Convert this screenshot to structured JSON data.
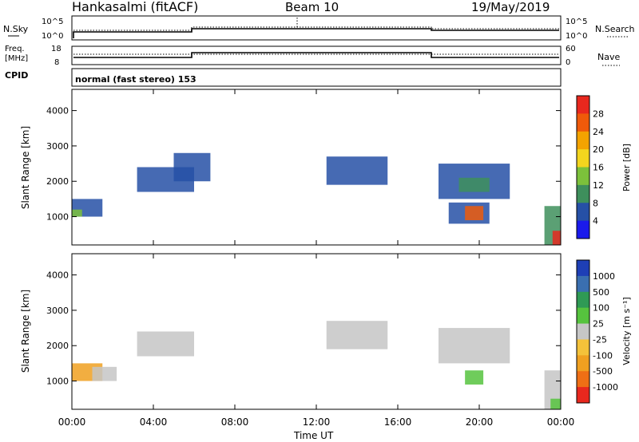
{
  "header": {
    "station": "Hankasalmi (fitACF)",
    "beam": "Beam 10",
    "date": "19/May/2019"
  },
  "sky_panel": {
    "left_label": "N.Sky",
    "right_label": "N.Search",
    "left_ticks": [
      "10^5",
      "10^0"
    ],
    "right_ticks": [
      "10^5",
      "10^0"
    ]
  },
  "freq_panel": {
    "left_label_line1": "Freq.",
    "left_label_line2": "[MHz]",
    "right_label": "Nave",
    "left_ticks": [
      "18",
      "8"
    ],
    "right_ticks": [
      "60",
      "0"
    ]
  },
  "cpid": {
    "label": "CPID",
    "mode": "normal (fast stereo) 153"
  },
  "chart_data": [
    {
      "type": "heatmap",
      "name": "power",
      "ylabel": "Slant Range [km]",
      "yticks": [
        1000,
        2000,
        3000,
        4000
      ],
      "ylim": [
        200,
        4600
      ],
      "colorbar": {
        "label": "Power [dB]",
        "ticks": [
          "28",
          "24",
          "20",
          "16",
          "12",
          "8",
          "4"
        ],
        "colors": [
          "#e8281e",
          "#ef5a0a",
          "#f4a300",
          "#f3d51e",
          "#7cc13b",
          "#3e8f5c",
          "#2650a6",
          "#1a1aeb"
        ]
      },
      "patches": [
        {
          "t0": 0.0,
          "t1": 1.5,
          "r0": 1000,
          "r1": 1500,
          "color": "#2650a6"
        },
        {
          "t0": 0.0,
          "t1": 0.5,
          "r0": 1000,
          "r1": 1200,
          "color": "#7cc13b"
        },
        {
          "t0": 3.2,
          "t1": 6.0,
          "r0": 1700,
          "r1": 2400,
          "color": "#2650a6"
        },
        {
          "t0": 5.0,
          "t1": 6.8,
          "r0": 2000,
          "r1": 2800,
          "color": "#2650a6"
        },
        {
          "t0": 12.5,
          "t1": 15.5,
          "r0": 1900,
          "r1": 2700,
          "color": "#2650a6"
        },
        {
          "t0": 18.0,
          "t1": 21.5,
          "r0": 1500,
          "r1": 2500,
          "color": "#2650a6"
        },
        {
          "t0": 19.0,
          "t1": 20.5,
          "r0": 1700,
          "r1": 2100,
          "color": "#3e8f5c"
        },
        {
          "t0": 18.5,
          "t1": 20.5,
          "r0": 800,
          "r1": 1400,
          "color": "#2650a6"
        },
        {
          "t0": 19.3,
          "t1": 20.2,
          "r0": 900,
          "r1": 1300,
          "color": "#ef5a0a"
        },
        {
          "t0": 23.2,
          "t1": 24.0,
          "r0": 200,
          "r1": 1300,
          "color": "#3e8f5c"
        },
        {
          "t0": 23.6,
          "t1": 24.0,
          "r0": 200,
          "r1": 600,
          "color": "#e8281e"
        }
      ]
    },
    {
      "type": "heatmap",
      "name": "velocity",
      "ylabel": "Slant Range [km]",
      "xlabel": "Time UT",
      "xticks": [
        "00:00",
        "04:00",
        "08:00",
        "12:00",
        "16:00",
        "20:00",
        "00:00"
      ],
      "yticks": [
        1000,
        2000,
        3000,
        4000
      ],
      "ylim": [
        200,
        4600
      ],
      "colorbar": {
        "label": "Velocity [m s⁻¹]",
        "ticks": [
          "1000",
          "500",
          "100",
          "25",
          "-25",
          "-100",
          "-500",
          "-1000"
        ],
        "colors": [
          "#1e3fb6",
          "#3a6fb0",
          "#2f9a55",
          "#56c33e",
          "#c6c6c6",
          "#f4c23a",
          "#f0a020",
          "#ef6f15",
          "#e8281e"
        ]
      },
      "patches": [
        {
          "t0": 0.0,
          "t1": 1.5,
          "r0": 1000,
          "r1": 1500,
          "color": "#f0a020"
        },
        {
          "t0": 1.0,
          "t1": 2.2,
          "r0": 1000,
          "r1": 1400,
          "color": "#c6c6c6"
        },
        {
          "t0": 3.2,
          "t1": 6.0,
          "r0": 1700,
          "r1": 2400,
          "color": "#c6c6c6"
        },
        {
          "t0": 12.5,
          "t1": 15.5,
          "r0": 1900,
          "r1": 2700,
          "color": "#c6c6c6"
        },
        {
          "t0": 18.0,
          "t1": 21.5,
          "r0": 1500,
          "r1": 2500,
          "color": "#c6c6c6"
        },
        {
          "t0": 19.3,
          "t1": 20.2,
          "r0": 900,
          "r1": 1300,
          "color": "#56c33e"
        },
        {
          "t0": 23.2,
          "t1": 24.0,
          "r0": 200,
          "r1": 1300,
          "color": "#c6c6c6"
        },
        {
          "t0": 23.5,
          "t1": 24.0,
          "r0": 200,
          "r1": 500,
          "color": "#56c33e"
        }
      ]
    }
  ]
}
